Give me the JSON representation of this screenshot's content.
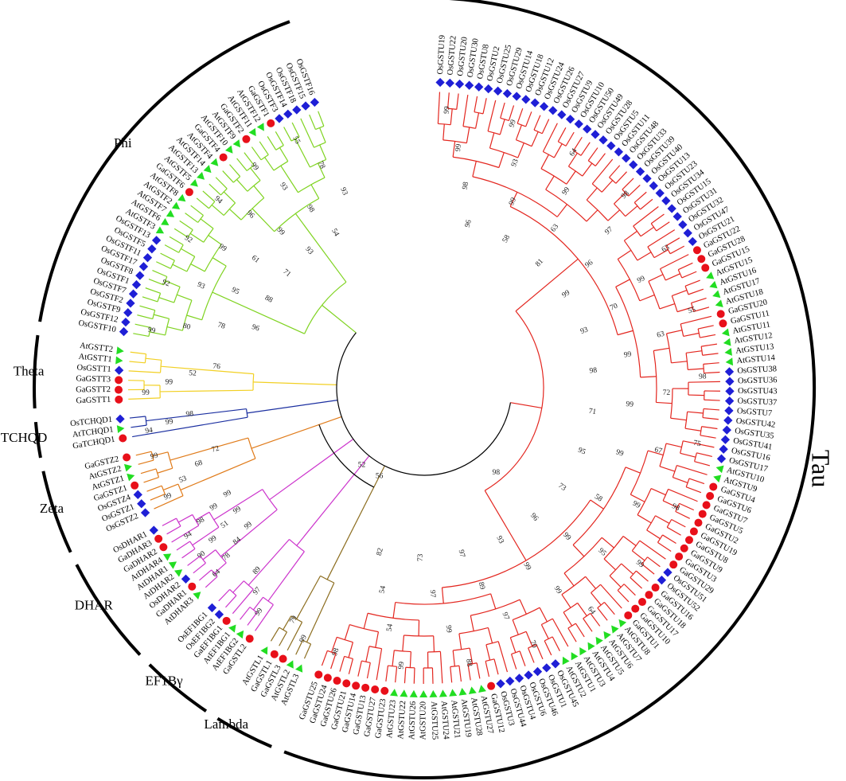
{
  "clades": [
    {
      "name": "Tau",
      "color": "#e3261f",
      "leaves": [
        "OsGSTU19",
        "OsGSTU22",
        "OsGSTU20",
        "OsGSTU30",
        "OsGSTU8",
        "OsGSTU2",
        "OsGSTU25",
        "OsGSTU29",
        "OsGSTU14",
        "OsGSTU18",
        "OsGSTU12",
        "OsGSTU24",
        "OsGSTU26",
        "OsGSTU27",
        "OsGSTU9",
        "OsGSTU10",
        "OsGSTU50",
        "OsGSTU49",
        "OsGSTU28",
        "OsGSTU5",
        "OsGSTU11",
        "OsGSTU48",
        "OsGSTU33",
        "OsGSTU39",
        "OsGSTU40",
        "OsGSTU13",
        "OsGSTU23",
        "OsGSTU34",
        "OsGSTU15",
        "OsGSTU31",
        "OsGSTU32",
        "OsGSTU47",
        "OsGSTU21",
        "GaGSTU22",
        "GaGSTU28",
        "GaGSTU15",
        "AtGSTU15",
        "AtGSTU16",
        "AtGSTU17",
        "AtGSTU18",
        "GaGSTU20",
        "GaGSTU11",
        "AtGSTU11",
        "AtGSTU12",
        "AtGSTU13",
        "AtGSTU14",
        "OsGSTU38",
        "OsGSTU36",
        "OsGSTU43",
        "OsGSTU37",
        "OsGSTU7",
        "OsGSTU42",
        "OsGSTU35",
        "OsGSTU41",
        "OsGSTU16",
        "OsGSTU17",
        "AtGSTU10",
        "AtGSTU9",
        "GaGSTU4",
        "GaGSTU6",
        "GaGSTU7",
        "GaGSTU5",
        "GaGSTU2",
        "GaGSTU19",
        "GaGSTU8",
        "GaGSTU9",
        "GaGSTU3",
        "GaGSTU29",
        "OsGSTU51",
        "OsGSTU52",
        "GaGSTU16",
        "GaGSTU18",
        "GaGSTU17",
        "GaGSTU10",
        "GaGSTU1",
        "AtGSTU8",
        "AtGSTU7",
        "AtGSTU6",
        "AtGSTU5",
        "AtGSTU4",
        "AtGSTU3",
        "AtGSTU1",
        "AtGSTU2",
        "OsGSTU45",
        "OsGSTU1",
        "OsGSTU46",
        "OsGSTU6",
        "OsGSTU4",
        "OsGSTU44",
        "OsGSTU3",
        "GaGSTU12",
        "AtGSTU27",
        "AtGSTU28",
        "AtGSTU19",
        "AtGSTU21",
        "AtGSTU24",
        "AtGSTU25",
        "AtGSTU20",
        "AtGSTU26",
        "AtGSTU22",
        "AtGSTU23",
        "GaGSTU23",
        "GaGSTU27",
        "GaGSTU13",
        "GaGSTU14",
        "GaGSTU21",
        "GaGSTU26",
        "GaGSTU24",
        "GaGSTU25"
      ],
      "bootstrap": [
        99,
        99,
        98,
        96,
        99,
        93,
        99,
        58,
        64,
        99,
        63,
        81,
        98,
        97,
        96,
        99,
        63,
        99,
        70,
        93,
        55,
        63,
        99,
        98,
        98,
        72,
        99,
        71,
        75,
        67,
        99,
        95,
        98,
        99,
        58,
        73,
        99,
        95,
        99,
        96,
        64,
        99,
        99,
        93,
        70,
        97,
        89,
        97,
        88,
        99,
        97,
        73,
        99,
        54,
        54,
        82,
        98
      ]
    },
    {
      "name": "Lambda",
      "color": "#8c6d1f",
      "leaves": [
        "AtGSTL3",
        "AtGSTL2",
        "GaGSTL3",
        "GaGSTL1",
        "AtGSTL1"
      ],
      "bootstrap": [
        99,
        79
      ]
    },
    {
      "name": "EF1Bγ",
      "color": "#cc33cc",
      "leaves": [
        "GaGSTL2",
        "AtEF1BG2",
        "AtEF1BG1",
        "GaEF1BG1",
        "OsEF1BG2",
        "OsEF1BG1"
      ],
      "bootstrap": [
        99,
        97,
        89
      ]
    },
    {
      "name": "DHAR",
      "color": "#cc33cc",
      "leaves": [
        "AtDHAR3",
        "GaDHAR1",
        "OsDHAR2",
        "AtDHAR2",
        "AtDHAR1",
        "AtDHAR4",
        "GaDHAR2",
        "GaDHAR3",
        "OsDHAR1"
      ],
      "bootstrap": [
        64,
        78,
        84,
        99,
        90,
        99,
        51,
        99,
        94,
        98,
        99,
        99
      ]
    },
    {
      "name": "Zeta",
      "color": "#e07b1a",
      "leaves": [
        "OsGSTZ2",
        "OsGSTZ1",
        "OsGSTZ4",
        "GaGSTZ1",
        "AtGSTZ1",
        "AtGSTZ2",
        "GaGSTZ2"
      ],
      "bootstrap": [
        99,
        53,
        68,
        72,
        99
      ]
    },
    {
      "name": "TCHQD",
      "color": "#1b2fa0",
      "leaves": [
        "GaTCHQD1",
        "AtTCHQD1",
        "OsTCHQD1"
      ],
      "bootstrap": [
        94,
        99,
        98
      ]
    },
    {
      "name": "Theta",
      "color": "#f2d024",
      "leaves": [
        "GaGSTT1",
        "GaGSTT2",
        "GaGSTT3",
        "OsGSTT1",
        "AtGSTT1",
        "AtGSTT2"
      ],
      "bootstrap": [
        99,
        99,
        52,
        76
      ]
    },
    {
      "name": "Phi",
      "color": "#7fd320",
      "leaves": [
        "OsGSTF10",
        "OsGSTF12",
        "OsGSTF9",
        "OsGSTF2",
        "OsGSTF7",
        "OsGSTF1",
        "OsGSTF8",
        "OsGSTF17",
        "OsGSTF11",
        "OsGSTF5",
        "OsGSTF13",
        "AtGSTF3",
        "AtGSTF6",
        "AtGSTF7",
        "AtGSTF2",
        "AtGSTF8",
        "GaGSTF6",
        "AtGSTF5",
        "AtGSTF13",
        "AtGSTF14",
        "AtGSTF4",
        "GaGSTF4",
        "AtGSTF10",
        "AtGSTF9",
        "GaGSTF2",
        "AtGSTF11",
        "AtGSTF12",
        "GaGSTF1",
        "OsGSTF3",
        "OsGSTF14",
        "OsGSTF18",
        "OsGSTF15",
        "OsGSTF16"
      ],
      "bootstrap": [
        99,
        80,
        78,
        96,
        92,
        93,
        95,
        88,
        92,
        99,
        61,
        71,
        94,
        96,
        99,
        93,
        99,
        93,
        98,
        54,
        55,
        78,
        93
      ]
    }
  ],
  "backbone": [
    52,
    56,
    98
  ]
}
